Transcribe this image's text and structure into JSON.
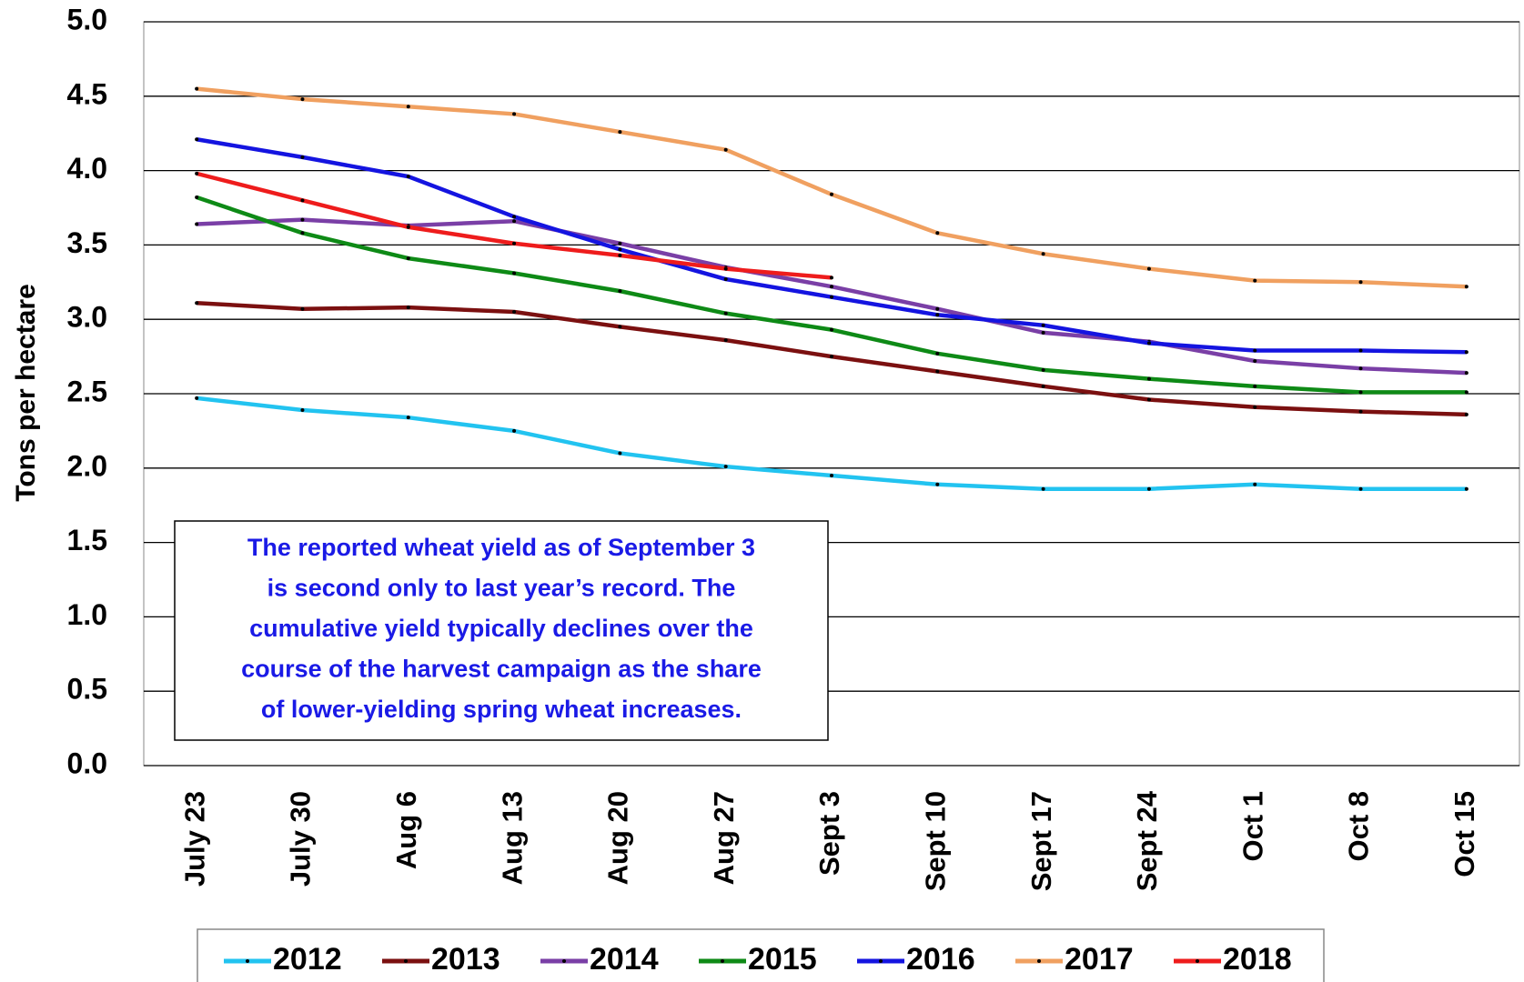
{
  "chart_data": {
    "type": "line",
    "y_label": "Tons per hectare",
    "categories": [
      "July 23",
      "July 30",
      "Aug 6",
      "Aug 13",
      "Aug 20",
      "Aug 27",
      "Sept 3",
      "Sept 10",
      "Sept 17",
      "Sept 24",
      "Oct 1",
      "Oct 8",
      "Oct 15"
    ],
    "series": [
      {
        "name": "2012",
        "color": "#22c3f0",
        "values": [
          2.47,
          2.39,
          2.34,
          2.25,
          2.1,
          2.01,
          1.95,
          1.89,
          1.86,
          1.86,
          1.89,
          1.86,
          1.86
        ]
      },
      {
        "name": "2013",
        "color": "#7b1010",
        "values": [
          3.11,
          3.07,
          3.08,
          3.05,
          2.95,
          2.86,
          2.75,
          2.65,
          2.55,
          2.46,
          2.41,
          2.38,
          2.36
        ]
      },
      {
        "name": "2014",
        "color": "#7a3fa6",
        "values": [
          3.64,
          3.67,
          3.63,
          3.66,
          3.51,
          3.35,
          3.22,
          3.07,
          2.91,
          2.85,
          2.72,
          2.67,
          2.64
        ]
      },
      {
        "name": "2015",
        "color": "#0e8a16",
        "values": [
          3.82,
          3.58,
          3.41,
          3.31,
          3.19,
          3.04,
          2.93,
          2.77,
          2.66,
          2.6,
          2.55,
          2.51,
          2.51
        ]
      },
      {
        "name": "2016",
        "color": "#1414e0",
        "values": [
          4.21,
          4.09,
          3.96,
          3.69,
          3.47,
          3.27,
          3.15,
          3.03,
          2.96,
          2.84,
          2.79,
          2.79,
          2.78
        ]
      },
      {
        "name": "2017",
        "color": "#f0a060",
        "values": [
          4.55,
          4.48,
          4.43,
          4.38,
          4.26,
          4.14,
          3.84,
          3.58,
          3.44,
          3.34,
          3.26,
          3.25,
          3.22
        ]
      },
      {
        "name": "2018",
        "color": "#ee1c1c",
        "values": [
          3.98,
          3.8,
          3.62,
          3.51,
          3.43,
          3.34,
          3.28,
          null,
          null,
          null,
          null,
          null,
          null
        ]
      }
    ],
    "ylim": [
      0,
      5
    ],
    "yticks": [
      {
        "value": 0,
        "label": "0.0"
      },
      0.5,
      {
        "value": 1,
        "label": "1.0"
      },
      1.5,
      {
        "value": 2,
        "label": "2.0"
      },
      2.5,
      {
        "value": 3,
        "label": "3.0"
      },
      3.5,
      {
        "value": 4,
        "label": "4.0"
      },
      4.5,
      {
        "value": 5,
        "label": "5.0"
      }
    ],
    "grid": true,
    "legend": "bottom",
    "annotation": [
      "The reported wheat yield as of September 3",
      "is second only to last year’s record.  The",
      "cumulative yield typically declines over the",
      "course of the harvest campaign as the share",
      "of lower-yielding spring wheat increases."
    ]
  }
}
